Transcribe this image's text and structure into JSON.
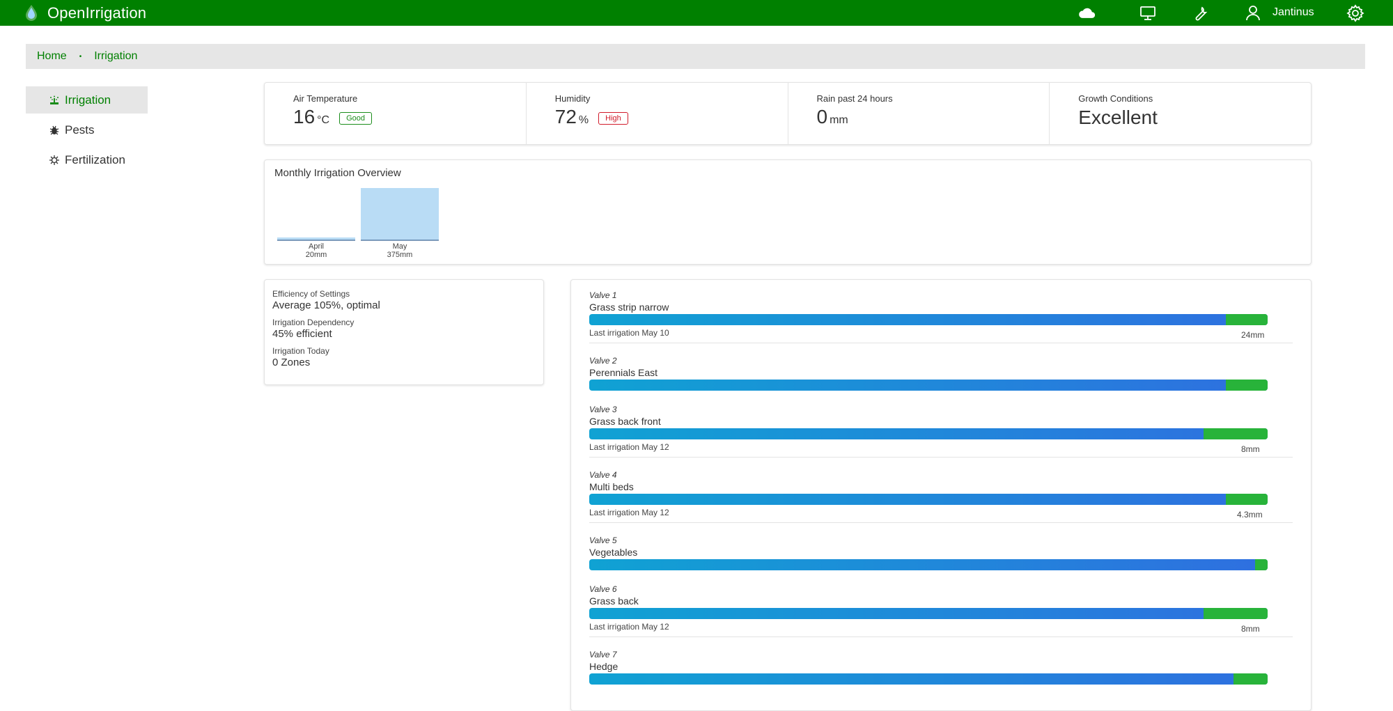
{
  "app": {
    "name": "OpenIrrigation",
    "user": "Jantinus"
  },
  "colors": {
    "brand": "#008000",
    "bar_start": "#10a2d3",
    "bar_end": "#2f6fe0",
    "bar_green": "#28b33a",
    "good": "#1a8c1a",
    "high": "#d11a2a"
  },
  "topbar_icons": [
    "weather-cloud-icon",
    "monitor-icon",
    "wrench-icon",
    "user-icon",
    "settings-gear-icon"
  ],
  "breadcrumb": {
    "home": "Home",
    "current": "Irrigation"
  },
  "sidebar": {
    "items": [
      {
        "label": "Irrigation",
        "icon": "sprinkler-icon",
        "active": true
      },
      {
        "label": "Pests",
        "icon": "bug-icon",
        "active": false
      },
      {
        "label": "Fertilization",
        "icon": "virus-icon",
        "active": false
      }
    ]
  },
  "stats": {
    "air_temp": {
      "label": "Air Temperature",
      "value": "16",
      "unit": "°C",
      "badge": "Good"
    },
    "humidity": {
      "label": "Humidity",
      "value": "72",
      "unit": "%",
      "badge": "High"
    },
    "rain": {
      "label": "Rain past 24 hours",
      "value": "0",
      "unit": "mm"
    },
    "growth": {
      "label": "Growth Conditions",
      "value": "Excellent"
    }
  },
  "chart_data": {
    "type": "bar",
    "title": "Monthly Irrigation Overview",
    "categories": [
      "April",
      "May"
    ],
    "values": [
      20,
      375
    ],
    "value_labels": [
      "20mm",
      "375mm"
    ],
    "unit": "mm",
    "ylim": [
      0,
      375
    ]
  },
  "summary": {
    "efficiency_label": "Efficiency of Settings",
    "efficiency_value": "Average 105%, optimal",
    "dependency_label": "Irrigation Dependency",
    "dependency_value": "45% efficient",
    "today_label": "Irrigation Today",
    "today_value": "0 Zones"
  },
  "valves": [
    {
      "num": "Valve 1",
      "name": "Grass strip narrow",
      "green_fraction": 0.062,
      "last": "Last irrigation May 10",
      "mm": "24mm"
    },
    {
      "num": "Valve 2",
      "name": "Perennials East",
      "green_fraction": 0.062,
      "last": "",
      "mm": ""
    },
    {
      "num": "Valve 3",
      "name": "Grass back front",
      "green_fraction": 0.094,
      "last": "Last irrigation May 12",
      "mm": "8mm"
    },
    {
      "num": "Valve 4",
      "name": "Multi beds",
      "green_fraction": 0.062,
      "last": "Last irrigation May 12",
      "mm": "4.3mm"
    },
    {
      "num": "Valve 5",
      "name": "Vegetables",
      "green_fraction": 0.019,
      "last": "",
      "mm": ""
    },
    {
      "num": "Valve 6",
      "name": "Grass back",
      "green_fraction": 0.094,
      "last": "Last irrigation May 12",
      "mm": "8mm"
    },
    {
      "num": "Valve 7",
      "name": "Hedge",
      "green_fraction": 0.05,
      "last": "",
      "mm": ""
    }
  ]
}
